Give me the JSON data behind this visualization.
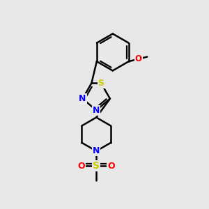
{
  "background_color": "#e8e8e8",
  "atom_colors": {
    "N": "#0000ff",
    "S_thiadiazole": "#cccc00",
    "S_sulfonyl": "#cccc00",
    "O": "#ff0000",
    "C": "#000000"
  },
  "bond_color": "#000000",
  "bond_width": 1.8,
  "figsize": [
    3.0,
    3.0
  ],
  "dpi": 100
}
